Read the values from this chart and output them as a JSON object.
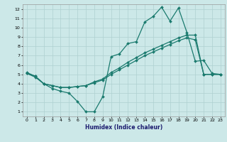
{
  "xlabel": "Humidex (Indice chaleur)",
  "x_values": [
    0,
    1,
    2,
    3,
    4,
    5,
    6,
    7,
    8,
    9,
    10,
    11,
    12,
    13,
    14,
    15,
    16,
    17,
    18,
    19,
    20,
    21,
    22,
    23
  ],
  "line1": [
    5.2,
    4.8,
    4.0,
    3.5,
    3.2,
    3.0,
    2.1,
    1.0,
    1.0,
    2.6,
    6.9,
    7.2,
    8.3,
    8.5,
    10.6,
    11.2,
    12.2,
    10.7,
    12.1,
    9.5,
    6.4,
    6.5,
    5.1,
    5.0
  ],
  "line2": [
    5.1,
    4.8,
    4.0,
    3.8,
    3.6,
    3.6,
    3.7,
    3.8,
    4.2,
    4.5,
    5.2,
    5.7,
    6.3,
    6.8,
    7.3,
    7.7,
    8.1,
    8.5,
    8.9,
    9.2,
    9.2,
    5.0,
    5.0,
    5.0
  ],
  "line3": [
    5.1,
    4.7,
    4.0,
    3.8,
    3.6,
    3.6,
    3.7,
    3.8,
    4.1,
    4.4,
    5.0,
    5.5,
    6.0,
    6.5,
    7.0,
    7.4,
    7.8,
    8.2,
    8.6,
    8.9,
    8.7,
    5.0,
    5.0,
    5.0
  ],
  "line_color": "#1a7a6e",
  "bg_color": "#cce8e8",
  "grid_color": "#aed0d0",
  "ylim_min": 0.5,
  "ylim_max": 12.5,
  "xlim_min": -0.5,
  "xlim_max": 23.5,
  "yticks": [
    1,
    2,
    3,
    4,
    5,
    6,
    7,
    8,
    9,
    10,
    11,
    12
  ],
  "xticks": [
    0,
    1,
    2,
    3,
    4,
    5,
    6,
    7,
    8,
    9,
    10,
    11,
    12,
    13,
    14,
    15,
    16,
    17,
    18,
    19,
    20,
    21,
    22,
    23
  ],
  "marker": "D",
  "marker_size": 2.0,
  "linewidth": 0.9,
  "tick_fontsize": 4.5,
  "xlabel_fontsize": 5.5
}
